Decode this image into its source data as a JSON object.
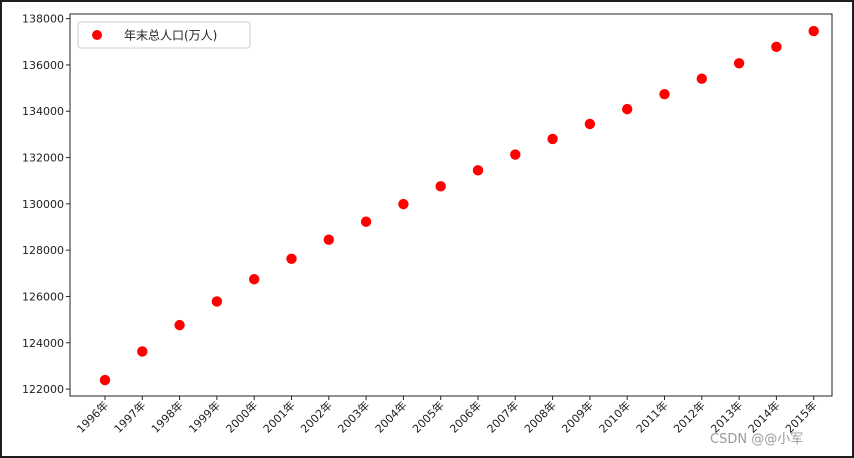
{
  "chart_data": {
    "type": "scatter",
    "title": "",
    "xlabel": "",
    "ylabel": "",
    "categories": [
      "1996年",
      "1997年",
      "1998年",
      "1999年",
      "2000年",
      "2001年",
      "2002年",
      "2003年",
      "2004年",
      "2005年",
      "2006年",
      "2007年",
      "2008年",
      "2009年",
      "2010年",
      "2011年",
      "2012年",
      "2013年",
      "2014年",
      "2015年"
    ],
    "series": [
      {
        "name": "年末总人口(万人)",
        "color": "#ff0000",
        "values": [
          122389,
          123626,
          124761,
          125786,
          126743,
          127627,
          128453,
          129227,
          129988,
          130756,
          131448,
          132129,
          132802,
          133450,
          134091,
          134735,
          135404,
          136072,
          136782,
          137462
        ]
      }
    ],
    "ylim": [
      121700,
      138200
    ],
    "yticks": [
      122000,
      124000,
      126000,
      128000,
      130000,
      132000,
      134000,
      136000,
      138000
    ],
    "grid": false,
    "legend_position": "top-left"
  },
  "watermark": "CSDN @@小军"
}
